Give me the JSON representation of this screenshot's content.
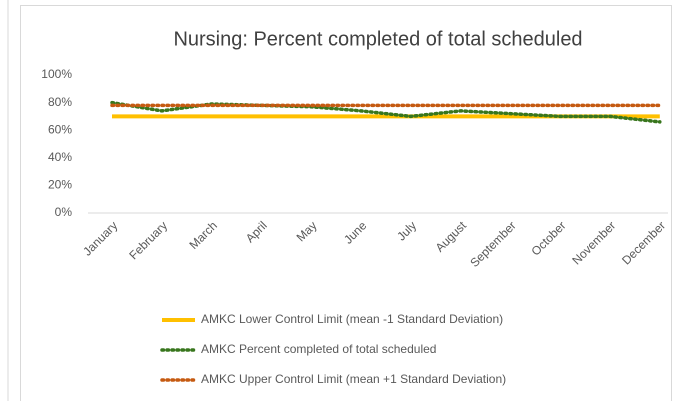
{
  "chart_data": {
    "type": "line",
    "title": "Nursing: Percent completed of total scheduled",
    "categories": [
      "January",
      "February",
      "March",
      "April",
      "May",
      "June",
      "July",
      "August",
      "September",
      "October",
      "November",
      "December"
    ],
    "series": [
      {
        "name": "AMKC Lower Control Limit (mean -1 Standard Deviation)",
        "color": "#ffc000",
        "line_style": "solid",
        "values": [
          70,
          70,
          70,
          70,
          70,
          70,
          70,
          70,
          70,
          70,
          70,
          70
        ]
      },
      {
        "name": "AMKC Percent completed of total scheduled",
        "color": "#38761d",
        "line_style": "dotted",
        "values": [
          80,
          74,
          79,
          78,
          77,
          74,
          70,
          74,
          72,
          70,
          70,
          66
        ]
      },
      {
        "name": "AMKC Upper Control Limit (mean +1 Standard Deviation)",
        "color": "#c55a11",
        "line_style": "dotted",
        "values": [
          78,
          78,
          78,
          78,
          78,
          78,
          78,
          78,
          78,
          78,
          78,
          78
        ]
      }
    ],
    "ylim": [
      0,
      100
    ],
    "yticks": [
      {
        "value": 0,
        "label": "0%"
      },
      {
        "value": 20,
        "label": "20%"
      },
      {
        "value": 40,
        "label": "40%"
      },
      {
        "value": 60,
        "label": "60%"
      },
      {
        "value": 80,
        "label": "80%"
      },
      {
        "value": 100,
        "label": "100%"
      }
    ],
    "grid": false,
    "legend": "bottom"
  }
}
